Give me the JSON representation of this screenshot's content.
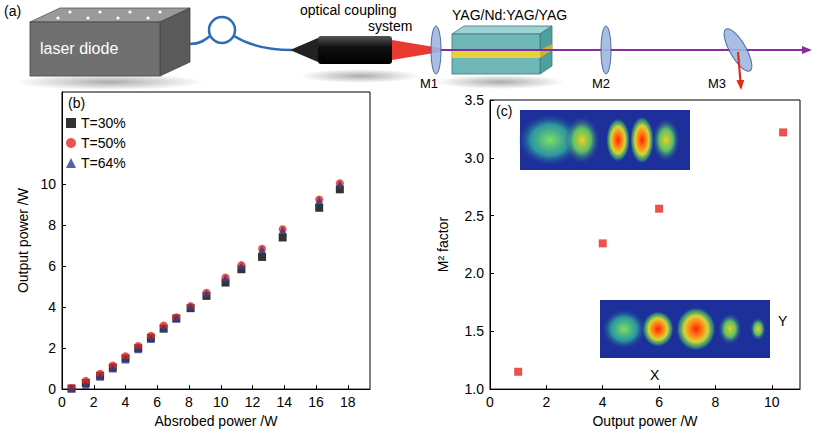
{
  "diagram": {
    "label": "(a)",
    "laser": "laser diode",
    "coupler": "optical coupling system",
    "crystal": "YAG/Nd:YAG/YAG",
    "mirrors": [
      "M1",
      "M2",
      "M3"
    ]
  },
  "chart_data": [
    {
      "type": "scatter",
      "title": "(b)",
      "xlabel": "Absrobed power /W",
      "ylabel": "Output power /W",
      "x": [
        0.6,
        1.5,
        2.4,
        3.2,
        4.0,
        4.8,
        5.6,
        6.4,
        7.2,
        8.1,
        9.1,
        10.3,
        11.3,
        12.6,
        13.9,
        16.2,
        17.5
      ],
      "series": [
        {
          "name": "T=30%",
          "color": "#000000",
          "marker": "square",
          "values": [
            0.03,
            0.3,
            0.65,
            1.05,
            1.5,
            2.0,
            2.5,
            2.95,
            3.45,
            3.95,
            4.55,
            5.2,
            5.85,
            6.45,
            7.4,
            8.85,
            9.75
          ]
        },
        {
          "name": "T=50%",
          "color": "#e8251f",
          "marker": "circle",
          "values": [
            0.05,
            0.4,
            0.75,
            1.15,
            1.6,
            2.1,
            2.6,
            3.1,
            3.5,
            4.05,
            4.7,
            5.45,
            6.05,
            6.85,
            7.8,
            9.25,
            10.05
          ]
        },
        {
          "name": "T=64%",
          "color": "#2e3a8c",
          "marker": "triangle",
          "values": [
            0.03,
            0.2,
            0.6,
            1.0,
            1.45,
            1.95,
            2.45,
            3.0,
            3.45,
            4.0,
            4.65,
            5.4,
            6.0,
            6.8,
            7.75,
            9.2,
            10.0
          ]
        }
      ],
      "xlim": [
        0,
        19.4
      ],
      "xticks": [
        0,
        2,
        4,
        6,
        8,
        10,
        12,
        14,
        16,
        18
      ],
      "ylim": [
        0,
        14.5
      ],
      "yticks": [
        0,
        2,
        4,
        6,
        8,
        10
      ],
      "legend": "upper left",
      "grid": false
    },
    {
      "type": "scatter",
      "title": "(c)",
      "xlabel": "Output power /W",
      "ylabel": "M² factor",
      "x": [
        1.0,
        4.0,
        6.0,
        10.4
      ],
      "values": [
        1.15,
        2.26,
        2.56,
        3.22
      ],
      "color": "#e8251f",
      "marker": "square",
      "xlim": [
        0,
        11
      ],
      "xticks": [
        0,
        2,
        4,
        6,
        8,
        10
      ],
      "ylim": [
        1,
        3.5
      ],
      "yticks": [
        {
          "value": 1,
          "label": "1.0"
        },
        1.5,
        {
          "value": 2,
          "label": "2.0"
        },
        2.5,
        {
          "value": 3,
          "label": "3.0"
        },
        3.5
      ],
      "annotations": [
        "Y",
        "X"
      ],
      "grid": false
    }
  ]
}
